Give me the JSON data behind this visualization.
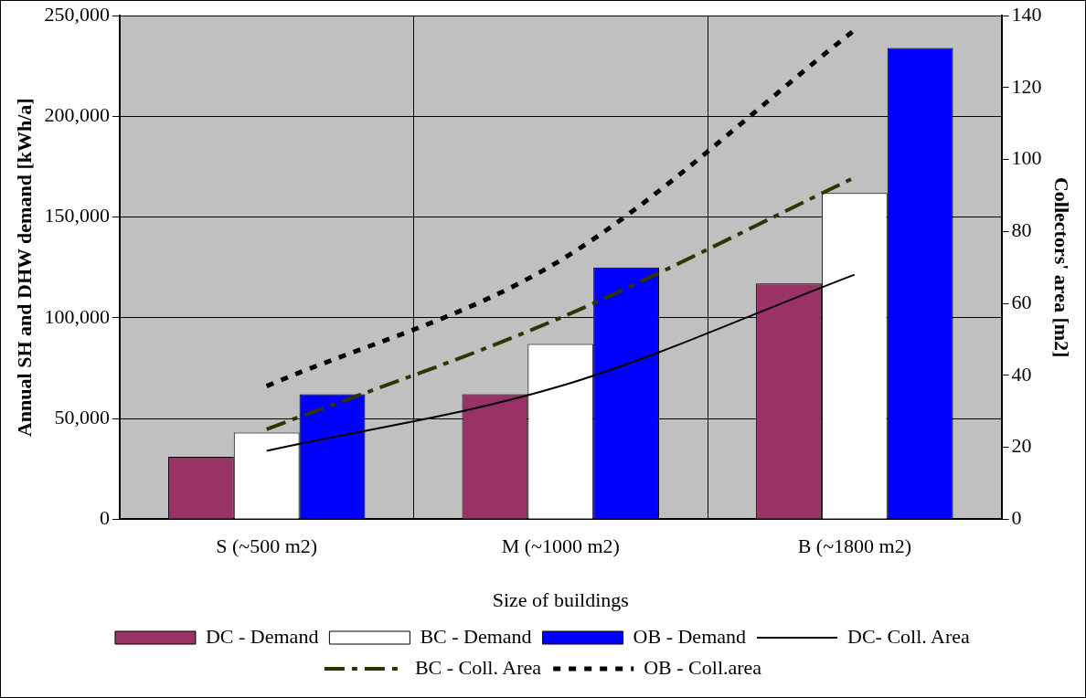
{
  "chart_data": {
    "type": "bar",
    "xlabel": "Size of buildings",
    "ylabel": "Annual SH and DHW demand [kWh/a]",
    "y2label": "Collectors' area [m2]",
    "categories": [
      "S (~500 m2)",
      "M (~1000 m2)",
      "B (~1800 m2)"
    ],
    "series": [
      {
        "name": "DC - Demand",
        "color": "#993366",
        "values": [
          31000,
          62000,
          117000
        ]
      },
      {
        "name": "BC - Demand",
        "color": "#ffffff",
        "values": [
          43000,
          87000,
          162000
        ]
      },
      {
        "name": "OB - Demand",
        "color": "#0000ff",
        "values": [
          62000,
          125000,
          234000
        ]
      },
      {
        "name": "DC- Coll. Area",
        "type": "line",
        "axis": "y2",
        "color": "#000000",
        "line_style": "solid",
        "values": [
          19,
          37,
          68
        ]
      },
      {
        "name": "BC - Coll. Area",
        "type": "line",
        "axis": "y2",
        "color": "#333300",
        "line_style": "dashed",
        "values": [
          25,
          56,
          95
        ]
      },
      {
        "name": "OB - Coll.area",
        "type": "line",
        "axis": "y2",
        "color": "#000000",
        "line_style": "dotted",
        "values": [
          37,
          72,
          136
        ]
      }
    ],
    "ylim": [
      0,
      250000
    ],
    "yticks": [
      0,
      {
        "value": 50000,
        "label": "50,000"
      },
      {
        "value": 100000,
        "label": "100,000"
      },
      {
        "value": 150000,
        "label": "150,000"
      },
      {
        "value": 200000,
        "label": "200,000"
      },
      {
        "value": 250000,
        "label": "250,000"
      }
    ],
    "y2lim": [
      0,
      140
    ],
    "y2ticks": [
      0,
      20,
      40,
      60,
      80,
      100,
      120,
      140
    ],
    "grid": true,
    "legend": "bottom",
    "marker": "none"
  }
}
